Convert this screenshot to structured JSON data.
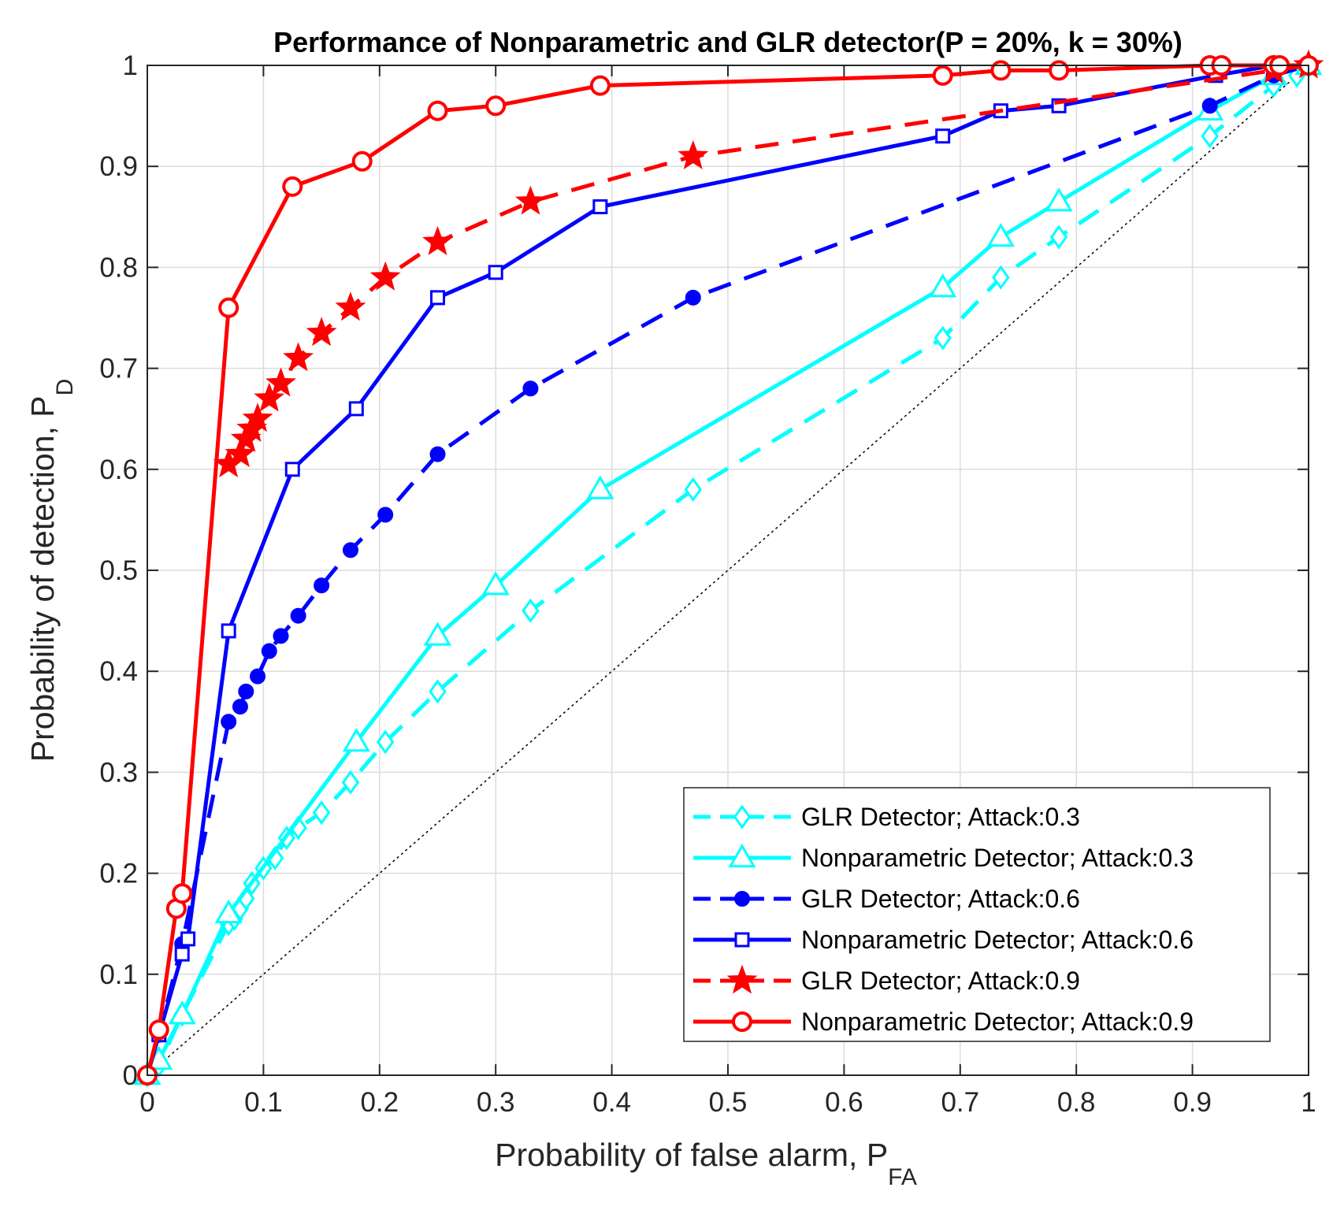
{
  "chart_data": {
    "type": "line",
    "title": "Performance of Nonparametric and GLR detector(P = 20%, k = 30%)",
    "xlabel": "Probability of false alarm, P",
    "xlabel_sub": "FA",
    "ylabel": "Probability of detection, P",
    "ylabel_sub": "D",
    "xlim": [
      0,
      1
    ],
    "ylim": [
      0,
      1
    ],
    "xticks": [
      0,
      0.1,
      0.2,
      0.3,
      0.4,
      0.5,
      0.6,
      0.7,
      0.8,
      0.9,
      1
    ],
    "yticks": [
      0,
      0.1,
      0.2,
      0.3,
      0.4,
      0.5,
      0.6,
      0.7,
      0.8,
      0.9,
      1
    ],
    "xtick_labels": [
      "0",
      "0.1",
      "0.2",
      "0.3",
      "0.4",
      "0.5",
      "0.6",
      "0.7",
      "0.8",
      "0.9",
      "1"
    ],
    "ytick_labels": [
      "0",
      "0.1",
      "0.2",
      "0.3",
      "0.4",
      "0.5",
      "0.6",
      "0.7",
      "0.8",
      "0.9",
      "1"
    ],
    "grid": true,
    "legend_position": "bottom-right",
    "reference_line": {
      "name": "chance diagonal",
      "x": [
        0,
        1
      ],
      "y": [
        0,
        1
      ],
      "color": "#000000",
      "dash": "dotted"
    },
    "series": [
      {
        "name": "GLR Detector; Attack:0.3",
        "color": "#00FFFF",
        "linestyle": "dashed",
        "marker": "diamond",
        "x": [
          0,
          0.01,
          0.03,
          0.07,
          0.075,
          0.08,
          0.085,
          0.09,
          0.1,
          0.11,
          0.12,
          0.13,
          0.15,
          0.175,
          0.205,
          0.25,
          0.33,
          0.47,
          0.685,
          0.735,
          0.785,
          0.915,
          0.97,
          0.99,
          1
        ],
        "y": [
          0,
          0.01,
          0.06,
          0.15,
          0.155,
          0.165,
          0.175,
          0.19,
          0.205,
          0.215,
          0.235,
          0.245,
          0.26,
          0.29,
          0.33,
          0.38,
          0.46,
          0.58,
          0.73,
          0.79,
          0.83,
          0.93,
          0.98,
          0.99,
          1
        ]
      },
      {
        "name": "Nonparametric Detector; Attack:0.3",
        "color": "#00FFFF",
        "linestyle": "solid",
        "marker": "triangle",
        "x": [
          0,
          0.01,
          0.03,
          0.07,
          0.18,
          0.25,
          0.3,
          0.39,
          0.685,
          0.735,
          0.785,
          0.915,
          0.97,
          1
        ],
        "y": [
          0,
          0.015,
          0.06,
          0.16,
          0.33,
          0.435,
          0.485,
          0.58,
          0.78,
          0.83,
          0.865,
          0.955,
          0.99,
          1
        ]
      },
      {
        "name": "GLR Detector; Attack:0.6",
        "color": "#0000FF",
        "linestyle": "dashed",
        "marker": "circle-filled",
        "x": [
          0,
          0.01,
          0.03,
          0.07,
          0.08,
          0.085,
          0.095,
          0.105,
          0.115,
          0.13,
          0.15,
          0.175,
          0.205,
          0.25,
          0.33,
          0.47,
          0.915,
          0.97,
          1
        ],
        "y": [
          0,
          0.04,
          0.13,
          0.35,
          0.365,
          0.38,
          0.395,
          0.42,
          0.435,
          0.455,
          0.485,
          0.52,
          0.555,
          0.615,
          0.68,
          0.77,
          0.96,
          0.99,
          1
        ]
      },
      {
        "name": "Nonparametric Detector; Attack:0.6",
        "color": "#0000FF",
        "linestyle": "solid",
        "marker": "square",
        "x": [
          0,
          0.01,
          0.03,
          0.035,
          0.07,
          0.125,
          0.18,
          0.25,
          0.3,
          0.39,
          0.685,
          0.735,
          0.785,
          0.92,
          0.97,
          1
        ],
        "y": [
          0,
          0.04,
          0.12,
          0.135,
          0.44,
          0.6,
          0.66,
          0.77,
          0.795,
          0.86,
          0.93,
          0.955,
          0.96,
          0.99,
          1,
          1
        ]
      },
      {
        "name": "GLR Detector; Attack:0.9",
        "color": "#FF0000",
        "linestyle": "dashed",
        "marker": "star",
        "x": [
          0.07,
          0.08,
          0.085,
          0.09,
          0.095,
          0.105,
          0.115,
          0.13,
          0.15,
          0.175,
          0.205,
          0.25,
          0.33,
          0.47,
          0.97,
          1
        ],
        "y": [
          0.605,
          0.615,
          0.63,
          0.64,
          0.65,
          0.67,
          0.685,
          0.71,
          0.735,
          0.76,
          0.79,
          0.825,
          0.865,
          0.91,
          0.995,
          1
        ]
      },
      {
        "name": "Nonparametric Detector; Attack:0.9",
        "color": "#FF0000",
        "linestyle": "solid",
        "marker": "circle",
        "x": [
          0,
          0.01,
          0.025,
          0.03,
          0.07,
          0.125,
          0.185,
          0.25,
          0.3,
          0.39,
          0.685,
          0.735,
          0.785,
          0.915,
          0.925,
          0.97,
          0.975,
          1
        ],
        "y": [
          0,
          0.045,
          0.165,
          0.18,
          0.76,
          0.88,
          0.905,
          0.955,
          0.96,
          0.98,
          0.99,
          0.995,
          0.995,
          1,
          1,
          1,
          1,
          1
        ]
      }
    ]
  }
}
